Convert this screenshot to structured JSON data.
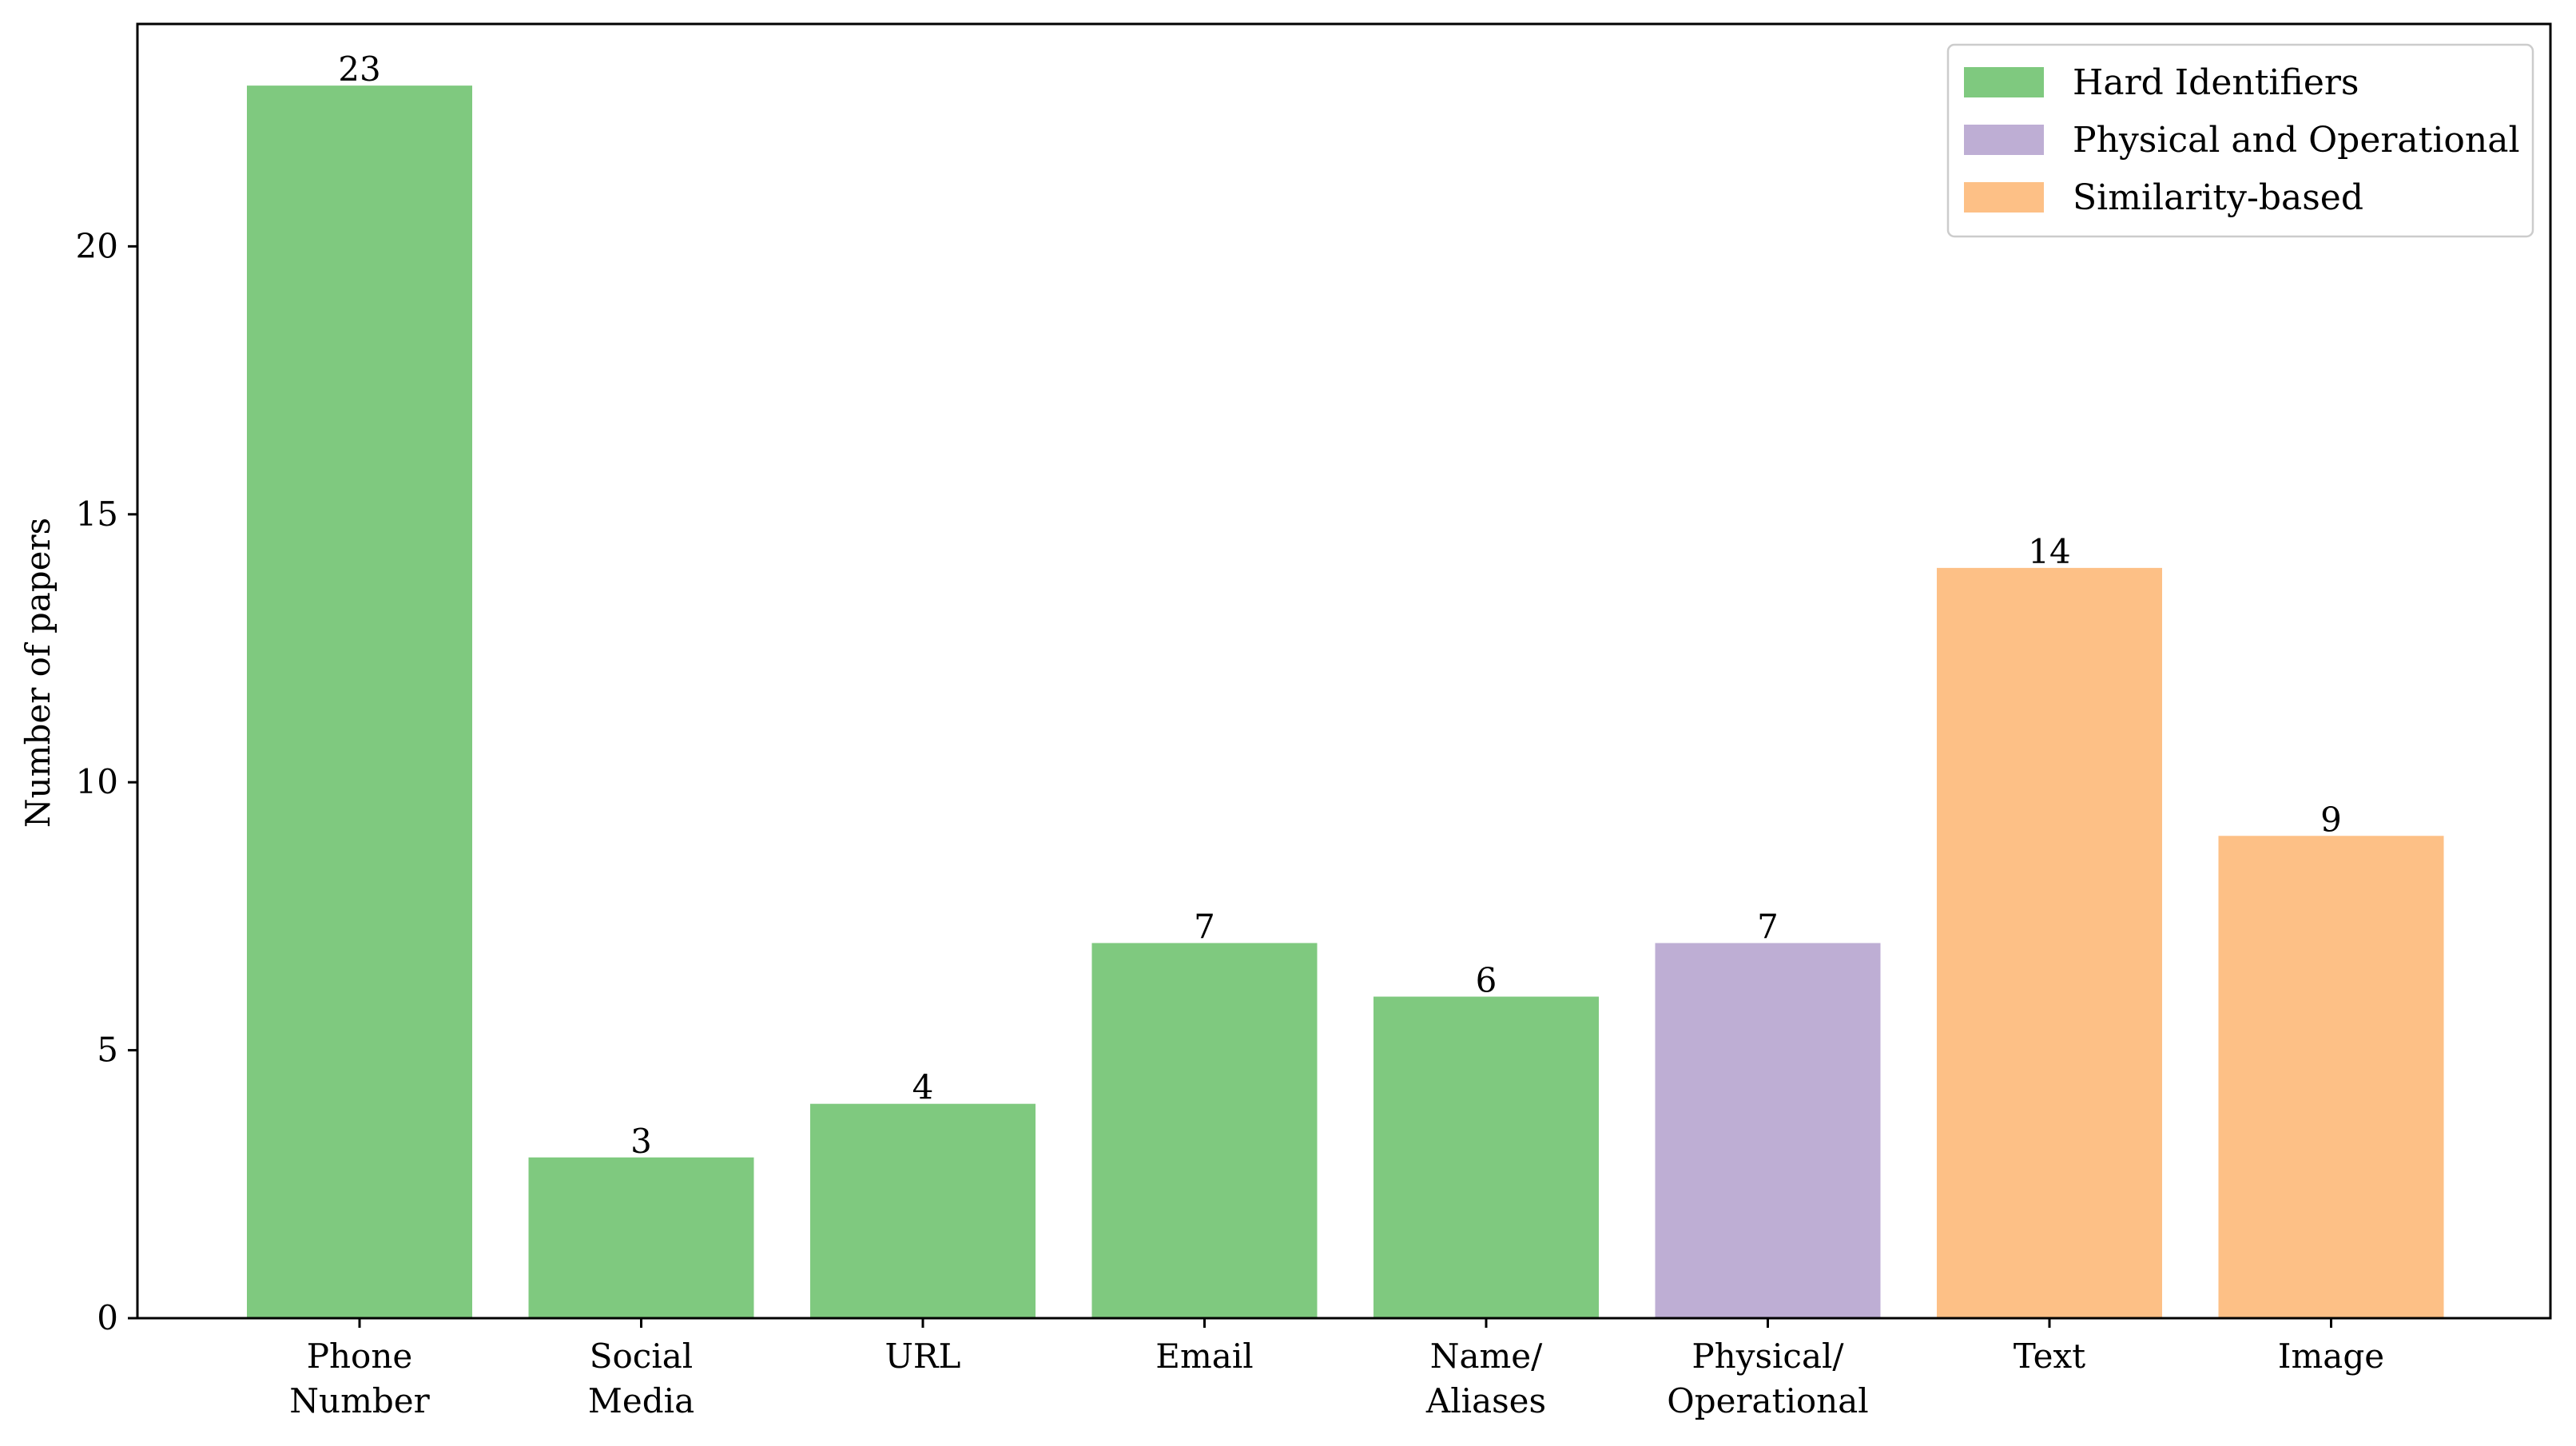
{
  "chart_data": {
    "type": "bar",
    "title": "",
    "xlabel": "",
    "ylabel": "Number of papers",
    "ylim": [
      0,
      24.15
    ],
    "yticks": [
      0,
      5,
      10,
      15,
      20
    ],
    "categories": [
      [
        "Phone",
        "Number"
      ],
      [
        "Social",
        "Media"
      ],
      [
        "URL"
      ],
      [
        "Email"
      ],
      [
        "Name/",
        "Aliases"
      ],
      [
        "Physical/",
        "Operational"
      ],
      [
        "Text"
      ],
      [
        "Image"
      ]
    ],
    "values": [
      23,
      3,
      4,
      7,
      6,
      7,
      14,
      9
    ],
    "groups": [
      "Hard Identifiers",
      "Hard Identifiers",
      "Hard Identifiers",
      "Hard Identifiers",
      "Hard Identifiers",
      "Physical and Operational",
      "Similarity-based",
      "Similarity-based"
    ],
    "legend": {
      "placement": "top-right",
      "entries": [
        {
          "label": "Hard Identifiers",
          "color": "#7fc97f"
        },
        {
          "label": "Physical and Operational",
          "color": "#beaed4"
        },
        {
          "label": "Similarity-based",
          "color": "#fdc086"
        }
      ]
    },
    "grid": false,
    "data_labels": true
  }
}
